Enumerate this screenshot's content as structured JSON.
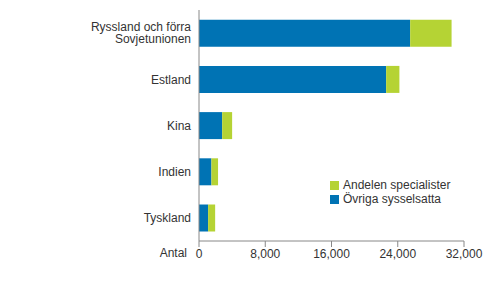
{
  "chart_data": {
    "type": "bar",
    "orientation": "horizontal",
    "stacked": true,
    "xlabel": "Antal",
    "categories": [
      "Ryssland och förra Sovjetunionen",
      "Estland",
      "Kina",
      "Indien",
      "Tyskland"
    ],
    "series": [
      {
        "name": "Övriga sysselsatta",
        "color": "#0073b4",
        "values": [
          25500,
          22600,
          2800,
          1500,
          1100
        ]
      },
      {
        "name": "Andelen specialister",
        "color": "#b5d334",
        "values": [
          5000,
          1600,
          1200,
          800,
          850
        ]
      }
    ],
    "xlim": [
      0,
      32000
    ],
    "xticks": [
      0,
      {
        "value": 8000,
        "label": "8,000"
      },
      {
        "value": 16000,
        "label": "16,000"
      },
      {
        "value": 24000,
        "label": "24,000"
      },
      {
        "value": 32000,
        "label": "32,000"
      }
    ],
    "grid": false,
    "legend": "lower right"
  }
}
